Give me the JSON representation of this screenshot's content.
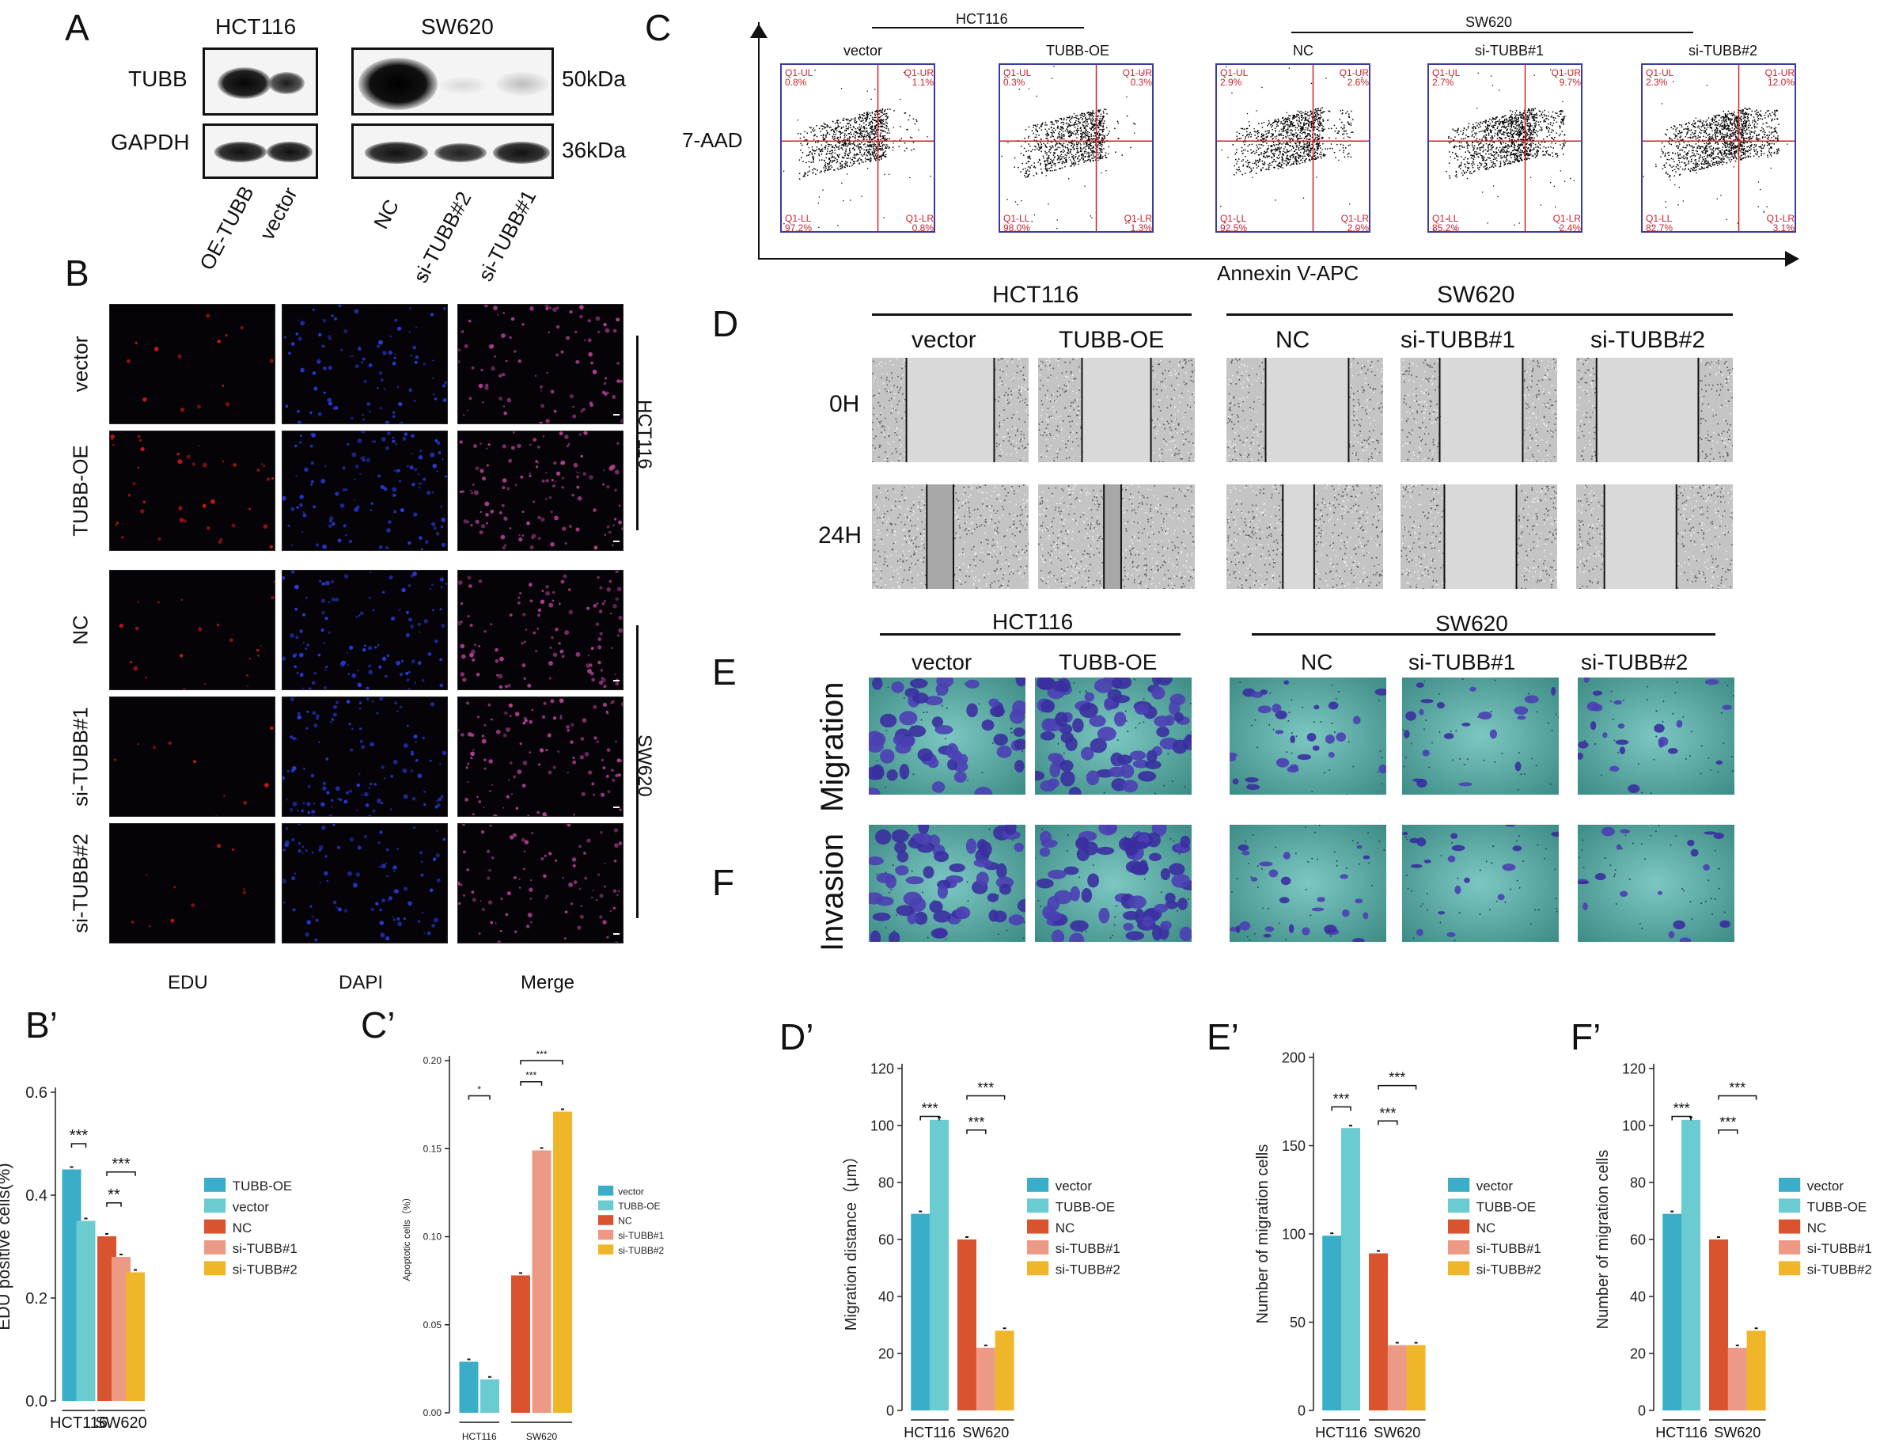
{
  "panels": {
    "A": "A",
    "B": "B",
    "C": "C",
    "D": "D",
    "E": "E",
    "F": "F",
    "Bp": "B’",
    "Cp": "C’",
    "Dp": "D’",
    "Ep": "E’",
    "Fp": "F’"
  },
  "blot": {
    "hct": "HCT116",
    "sw": "SW620",
    "tubb": "TUBB",
    "gapdh": "GAPDH",
    "kda50": "50kDa",
    "kda36": "36kDa",
    "lanes": [
      "OE-TUBB",
      "vector",
      "NC",
      "si-TUBB#2",
      "si-TUBB#1"
    ],
    "dash": "-"
  },
  "edu": {
    "rows": [
      "vector",
      "TUBB-OE",
      "NC",
      "si-TUBB#1",
      "si-TUBB#2"
    ],
    "cols": [
      "EDU",
      "DAPI",
      "Merge"
    ],
    "groups": [
      "HCT116",
      "SW620"
    ]
  },
  "flowc": {
    "hct": "HCT116",
    "sw": "SW620",
    "yaxis": "7-AAD",
    "xaxis": "Annexin V-APC",
    "plots": [
      {
        "name": "vector",
        "ul": "Q1-UL",
        "ulv": "0.8%",
        "ur": "Q1-UR",
        "urv": "1.1%",
        "ll": "Q1-LL",
        "llv": "97.2%",
        "lr": "Q1-LR",
        "lrv": "0.8%"
      },
      {
        "name": "TUBB-OE",
        "ul": "Q1-UL",
        "ulv": "0.3%",
        "ur": "Q1-UR",
        "urv": "0.3%",
        "ll": "Q1-LL",
        "llv": "98.0%",
        "lr": "Q1-LR",
        "lrv": "1.3%"
      },
      {
        "name": "NC",
        "ul": "Q1-UL",
        "ulv": "2.9%",
        "ur": "Q1-UR",
        "urv": "2.6%",
        "ll": "Q1-LL",
        "llv": "92.5%",
        "lr": "Q1-LR",
        "lrv": "2.0%"
      },
      {
        "name": "si-TUBB#1",
        "ul": "Q1-UL",
        "ulv": "2.7%",
        "ur": "Q1-UR",
        "urv": "9.7%",
        "ll": "Q1-LL",
        "llv": "85.2%",
        "lr": "Q1-LR",
        "lrv": "2.4%"
      },
      {
        "name": "si-TUBB#2",
        "ul": "Q1-UL",
        "ulv": "2.3%",
        "ur": "Q1-UR",
        "urv": "12.0%",
        "ll": "Q1-LL",
        "llv": "82.7%",
        "lr": "Q1-LR",
        "lrv": "3.1%"
      }
    ]
  },
  "wound": {
    "hct": "HCT116",
    "sw": "SW620",
    "cols": [
      "vector",
      "TUBB-OE",
      "NC",
      "si-TUBB#1",
      "si-TUBB#2"
    ],
    "rows": [
      "0H",
      "24H"
    ]
  },
  "transwell": {
    "hct": "HCT116",
    "sw": "SW620",
    "cols": [
      "vector",
      "TUBB-OE",
      "NC",
      "si-TUBB#1",
      "si-TUBB#2"
    ],
    "rows": [
      "Migration",
      "Invasion"
    ]
  },
  "chart_data": [
    {
      "id": "Bp",
      "type": "bar",
      "ylabel": "EDU positive cells(%)",
      "ylim": [
        0,
        0.6
      ],
      "yticks": [
        "0.0",
        "0.2",
        "0.4",
        "0.6"
      ],
      "groups": [
        "HCT116",
        "SW620"
      ],
      "series": [
        {
          "name": "TUBB-OE",
          "value": 0.45
        },
        {
          "name": "vector",
          "value": 0.35
        },
        {
          "name": "NC",
          "value": 0.32
        },
        {
          "name": "si-TUBB#1",
          "value": 0.28
        },
        {
          "name": "si-TUBB#2",
          "value": 0.25
        }
      ],
      "sig": [
        "***",
        "**",
        "***"
      ]
    },
    {
      "id": "Cp",
      "type": "bar",
      "ylabel": "Apoptotic cells（%）",
      "ylim": [
        0,
        0.2
      ],
      "yticks": [
        "0.00",
        "0.05",
        "0.10",
        "0.15",
        "0.20"
      ],
      "groups": [
        "HCT116",
        "SW620"
      ],
      "series": [
        {
          "name": "vector",
          "value": 0.029
        },
        {
          "name": "TUBB-OE",
          "value": 0.019
        },
        {
          "name": "NC",
          "value": 0.078
        },
        {
          "name": "si-TUBB#1",
          "value": 0.149
        },
        {
          "name": "si-TUBB#2",
          "value": 0.171
        }
      ],
      "sig": [
        "*",
        "***",
        "***"
      ]
    },
    {
      "id": "Dp",
      "type": "bar",
      "ylabel": "Migration distance（μm）",
      "ylim": [
        0,
        120
      ],
      "yticks": [
        "0",
        "20",
        "40",
        "60",
        "80",
        "100",
        "120"
      ],
      "groups": [
        "HCT116",
        "SW620"
      ],
      "series": [
        {
          "name": "vector",
          "value": 69
        },
        {
          "name": "TUBB-OE",
          "value": 102
        },
        {
          "name": "NC",
          "value": 60
        },
        {
          "name": "si-TUBB#1",
          "value": 22
        },
        {
          "name": "si-TUBB#2",
          "value": 28
        }
      ],
      "sig": [
        "***",
        "***",
        "***"
      ]
    },
    {
      "id": "Ep",
      "type": "bar",
      "ylabel": "Number of migration cells",
      "ylim": [
        0,
        200
      ],
      "yticks": [
        "0",
        "50",
        "100",
        "150",
        "200"
      ],
      "groups": [
        "HCT116",
        "SW620"
      ],
      "series": [
        {
          "name": "vector",
          "value": 99
        },
        {
          "name": "TUBB-OE",
          "value": 160
        },
        {
          "name": "NC",
          "value": 89
        },
        {
          "name": "si-TUBB#1",
          "value": 37
        },
        {
          "name": "si-TUBB#2",
          "value": 37
        }
      ],
      "sig": [
        "***",
        "***",
        "***"
      ]
    },
    {
      "id": "Fp",
      "type": "bar",
      "ylabel": "Number of migration cells",
      "ylim": [
        0,
        120
      ],
      "yticks": [
        "0",
        "20",
        "40",
        "60",
        "80",
        "100",
        "120"
      ],
      "groups": [
        "HCT116",
        "SW620"
      ],
      "series": [
        {
          "name": "vector",
          "value": 69
        },
        {
          "name": "TUBB-OE",
          "value": 102
        },
        {
          "name": "NC",
          "value": 60
        },
        {
          "name": "si-TUBB#1",
          "value": 22
        },
        {
          "name": "si-TUBB#2",
          "value": 28
        }
      ],
      "sig": [
        "***",
        "***",
        "***"
      ]
    }
  ],
  "colors": {
    "blue": "#3aaec8",
    "teal": "#6acbd0",
    "red": "#d9532e",
    "salmon": "#ec9a85",
    "yellow": "#f0b62a",
    "flowred": "#d0202a",
    "flowblue": "#3a3aa0"
  }
}
